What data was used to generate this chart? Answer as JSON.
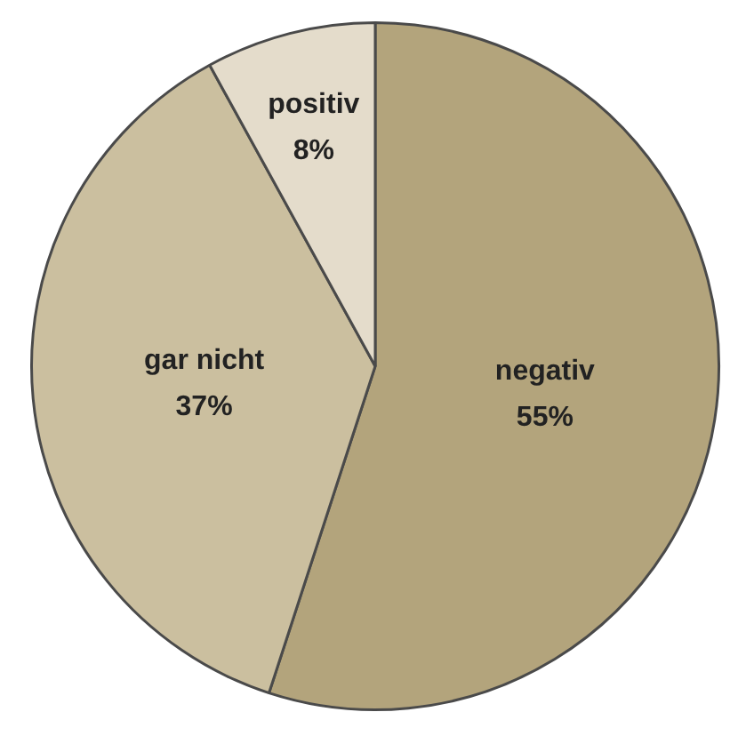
{
  "chart_data": {
    "type": "pie",
    "categories": [
      "negativ",
      "gar nicht",
      "positiv"
    ],
    "values": [
      55,
      37,
      8
    ],
    "colors": [
      "#b3a47c",
      "#cbbf9f",
      "#e4dccb"
    ],
    "value_labels": [
      "55%",
      "37%",
      "8%"
    ],
    "legend": false
  }
}
